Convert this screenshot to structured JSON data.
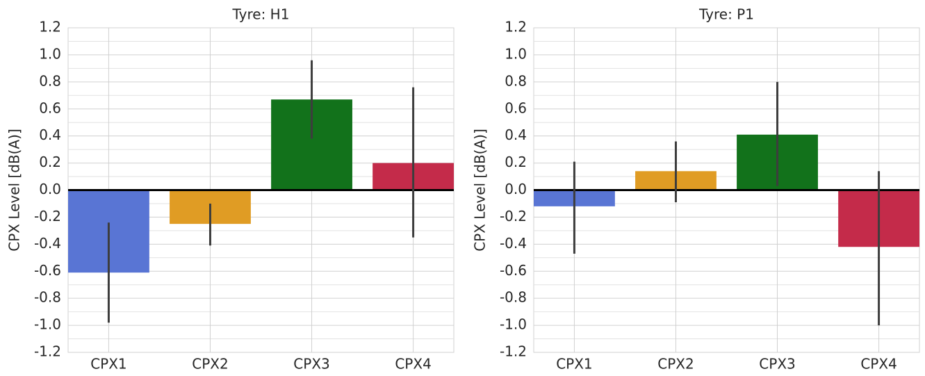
{
  "chart_data": [
    {
      "type": "bar",
      "title": "Tyre: H1",
      "y_label": "CPX Level [dB(A)]",
      "categories": [
        "CPX1",
        "CPX2",
        "CPX3",
        "CPX4"
      ],
      "values": [
        -0.61,
        -0.25,
        0.67,
        0.2
      ],
      "ci_low": [
        -0.98,
        -0.41,
        0.38,
        -0.35
      ],
      "ci_high": [
        -0.24,
        -0.1,
        0.96,
        0.76
      ],
      "colors": [
        "#5975d4",
        "#e09c24",
        "#12721b",
        "#c42b4a"
      ],
      "ylim": [
        -1.2,
        1.2
      ],
      "yticks": [
        -1.2,
        {
          "value": -1.0,
          "label": "-1.0"
        },
        -0.8,
        -0.6,
        -0.4,
        -0.2,
        {
          "value": 0,
          "label": "0.0"
        },
        0.2,
        0.4,
        0.6,
        0.8,
        {
          "value": 1.0,
          "label": "1.0"
        },
        1.2
      ],
      "minor_yticks": [
        -1.1,
        -0.9,
        -0.7,
        -0.5,
        -0.3,
        -0.1,
        0.1,
        0.3,
        0.5,
        0.7,
        0.9,
        1.1
      ],
      "grid": true
    },
    {
      "type": "bar",
      "title": "Tyre: P1",
      "y_label": "CPX Level [dB(A)]",
      "categories": [
        "CPX1",
        "CPX2",
        "CPX3",
        "CPX4"
      ],
      "values": [
        -0.12,
        0.14,
        0.41,
        -0.42
      ],
      "ci_low": [
        -0.47,
        -0.09,
        0.03,
        -1.0
      ],
      "ci_high": [
        0.21,
        0.36,
        0.8,
        0.14
      ],
      "colors": [
        "#5975d4",
        "#e09c24",
        "#12721b",
        "#c42b4a"
      ],
      "ylim": [
        -1.2,
        1.2
      ],
      "yticks": [
        -1.2,
        {
          "value": -1.0,
          "label": "-1.0"
        },
        -0.8,
        -0.6,
        -0.4,
        -0.2,
        {
          "value": 0,
          "label": "0.0"
        },
        0.2,
        0.4,
        0.6,
        0.8,
        {
          "value": 1.0,
          "label": "1.0"
        },
        1.2
      ],
      "minor_yticks": [
        -1.1,
        -0.9,
        -0.7,
        -0.5,
        -0.3,
        -0.1,
        0.1,
        0.3,
        0.5,
        0.7,
        0.9,
        1.1
      ],
      "grid": true
    }
  ]
}
